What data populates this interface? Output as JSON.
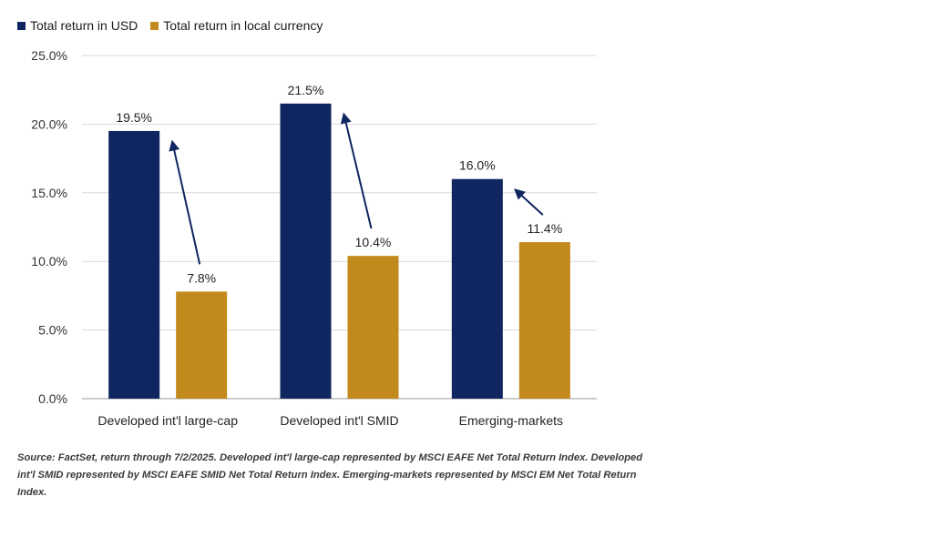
{
  "legend": {
    "series_1": "Total return in USD",
    "series_2": "Total return in local currency"
  },
  "colors": {
    "usd": "#0f2660",
    "local": "#c28a1c",
    "arrow": "#0f2660",
    "grid": "#d9d9d9"
  },
  "chart_data": {
    "type": "bar",
    "categories": [
      "Developed int'l large-cap",
      "Developed int'l SMID",
      "Emerging-markets"
    ],
    "series": [
      {
        "name": "Total return in USD",
        "values": [
          19.5,
          21.5,
          16.0
        ],
        "labels": [
          "19.5%",
          "21.5%",
          "16.0%"
        ]
      },
      {
        "name": "Total return in local currency",
        "values": [
          7.8,
          10.4,
          11.4
        ],
        "labels": [
          "7.8%",
          "10.4%",
          "11.4%"
        ]
      }
    ],
    "yticks": [
      0,
      5,
      10,
      15,
      20,
      25
    ],
    "ytick_labels": [
      "0.0%",
      "5.0%",
      "10.0%",
      "15.0%",
      "20.0%",
      "25.0%"
    ],
    "ylim": [
      0,
      25
    ],
    "grid": true,
    "legend_position": "top-left",
    "annotations": "arrows pointing from local-currency bar up to USD bar"
  },
  "source_note": "Source: FactSet, return through 7/2/2025. Developed int'l large-cap represented by MSCI EAFE Net Total Return Index. Developed int'l SMID represented by MSCI EAFE SMID Net Total Return Index. Emerging-markets represented by MSCI EM Net Total Return Index."
}
